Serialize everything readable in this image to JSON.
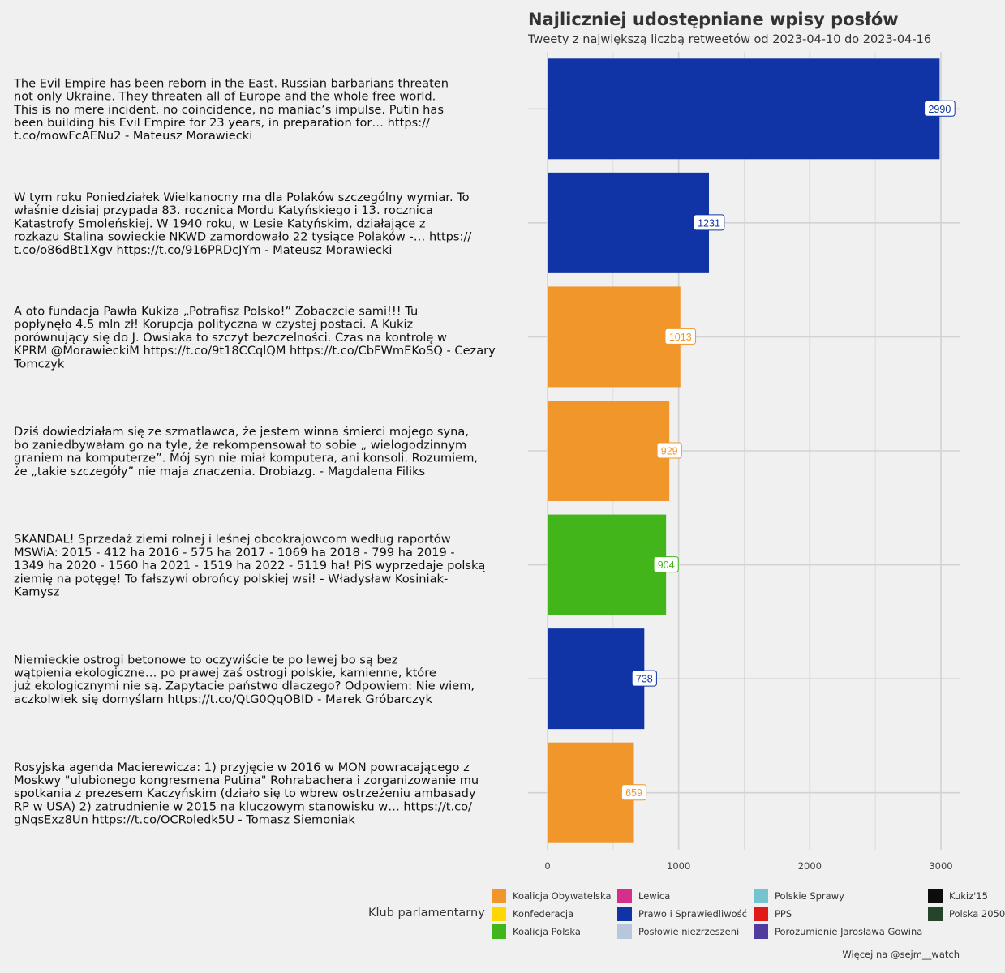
{
  "title": "Najliczniej udostępniane wpisy posłów",
  "subtitle": "Tweety z największą liczbą retweetów od 2023-04-10 do 2023-04-16",
  "caption": "Więcej na @sejm__watch",
  "legend": {
    "title": "Klub parlamentarny",
    "items": [
      {
        "label": "Koalicja Obywatelska",
        "color": "#f0962b"
      },
      {
        "label": "Konfederacja",
        "color": "#ffd700"
      },
      {
        "label": "Koalicja Polska",
        "color": "#42b51b"
      },
      {
        "label": "Lewica",
        "color": "#d62f8b"
      },
      {
        "label": "Prawo i Sprawiedliwość",
        "color": "#1034a6"
      },
      {
        "label": "Posłowie niezrzeszeni",
        "color": "#b8c8dc"
      },
      {
        "label": "Polskie Sprawy",
        "color": "#74c3ce"
      },
      {
        "label": "PPS",
        "color": "#e01919"
      },
      {
        "label": "Porozumienie Jarosława Gowina",
        "color": "#4f3c9e"
      },
      {
        "label": "Kukiz'15",
        "color": "#0d0d0d"
      },
      {
        "label": "Polska 2050",
        "color": "#26442a"
      }
    ]
  },
  "chart_data": {
    "type": "bar",
    "orientation": "horizontal",
    "xlim": [
      0,
      3100
    ],
    "x_ticks": [
      0,
      1000,
      2000,
      3000
    ],
    "grid": true,
    "legend_position": "bottom",
    "categories": [
      [
        "The Evil Empire has been reborn in the East. Russian barbarians threaten",
        "not only Ukraine. They threaten all of Europe and the whole free world.",
        "This is no mere incident, no coincidence, no maniac’s impulse. Putin has",
        "been building his Evil Empire for 23 years, in preparation for… https://",
        "t.co/mowFcAENu2 - Mateusz Morawiecki"
      ],
      [
        "W tym roku Poniedziałek Wielkanocny ma dla Polaków szczególny wymiar. To",
        "właśnie dzisiaj przypada 83. rocznica Mordu Katyńskiego i 13. rocznica",
        "Katastrofy Smoleńskiej. W 1940 roku, w Lesie Katyńskim, działające z",
        "rozkazu Stalina sowieckie NKWD zamordowało 22 tysiące Polaków -… https://",
        "t.co/o86dBt1Xgv https://t.co/916PRDcJYm - Mateusz Morawiecki"
      ],
      [
        "A oto fundacja Pawła Kukiza „Potrafisz Polsko!” Zobaczcie sami!!! Tu",
        "popłynęło 4.5 mln zł! Korupcja polityczna w czystej postaci. A Kukiz",
        "porównujący się do J. Owsiaka to szczyt bezczelności. Czas na kontrolę w",
        "KPRM @MorawieckiM https://t.co/9t18CCqlQM https://t.co/CbFWmEKoSQ - Cezary",
        "Tomczyk"
      ],
      [
        "Dziś dowiedziałam się ze szmatlawca, że jestem winna śmierci mojego syna,",
        "bo zaniedbywałam go na tyle, że rekompensował to sobie „ wielogodzinnym",
        "graniem na komputerze”. Mój syn nie miał komputera, ani konsoli. Rozumiem,",
        "że „takie szczegóły” nie maja znaczenia. Drobiazg. - Magdalena Filiks"
      ],
      [
        "SKANDAL! Sprzedaż ziemi rolnej i leśnej obcokrajowcom według raportów",
        "MSWiA: 2015 - 412 ha 2016 - 575 ha 2017 - 1069 ha 2018 - 799 ha 2019 -",
        "1349 ha 2020 - 1560 ha 2021 - 1519 ha 2022 - 5119 ha! PiS wyprzedaje polską",
        "ziemię na potęgę! To fałszywi obrońcy polskiej wsi! - Władysław Kosiniak-",
        "Kamysz"
      ],
      [
        "Niemieckie ostrogi betonowe to oczywiście te po lewej bo są bez",
        "wątpienia ekologiczne… po prawej zaś ostrogi polskie, kamienne, które",
        "już ekologicznymi nie są. Zapytacie państwo dlaczego? Odpowiem: Nie wiem,",
        "aczkolwiek się domyślam https://t.co/QtG0QqOBID - Marek Gróbarczyk"
      ],
      [
        "Rosyjska agenda Macierewicza: 1) przyjęcie w 2016 w MON powracającego z",
        "Moskwy \"ulubionego kongresmena Putina\" Rohrabachera i zorganizowanie mu",
        "spotkania z prezesem Kaczyńskim (działo się to wbrew ostrzeżeniu ambasady",
        "RP w USA) 2) zatrudnienie w 2015 na kluczowym stanowisku w… https://t.co/",
        "gNqsExz8Un https://t.co/OCRoledk5U - Tomasz Siemoniak"
      ]
    ],
    "values": [
      2990,
      1231,
      1013,
      929,
      904,
      738,
      659
    ],
    "party": [
      "Prawo i Sprawiedliwość",
      "Prawo i Sprawiedliwość",
      "Koalicja Obywatelska",
      "Koalicja Obywatelska",
      "Koalicja Polska",
      "Prawo i Sprawiedliwość",
      "Koalicja Obywatelska"
    ],
    "colors": [
      "#1034a6",
      "#1034a6",
      "#f0962b",
      "#f0962b",
      "#42b51b",
      "#1034a6",
      "#f0962b"
    ]
  }
}
